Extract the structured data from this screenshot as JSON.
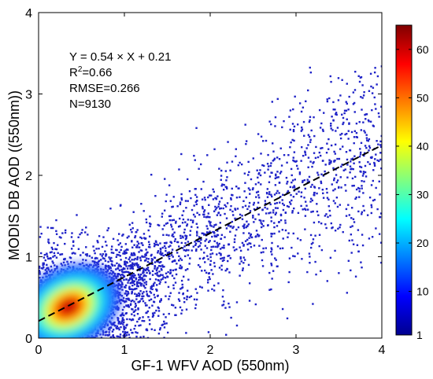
{
  "chart_data": {
    "type": "scatter",
    "subtype": "density-colored scatter with regression line",
    "xlabel": "GF-1 WFV AOD (550nm)",
    "ylabel": "MODIS DB AOD ((550nm))",
    "xlim": [
      0,
      4
    ],
    "ylim": [
      0,
      4
    ],
    "xticks": [
      "0",
      "1",
      "2",
      "3",
      "4"
    ],
    "yticks": [
      "0",
      "1",
      "2",
      "3",
      "4"
    ],
    "grid": false,
    "annotations": [
      "Y = 0.54 × X + 0.21",
      "R²=0.66",
      "RMSE=0.266",
      "N=9130"
    ],
    "annotation_lines": [
      {
        "text": "Y = 0.54 × X + 0.21"
      },
      {
        "base": "R",
        "sup": "2",
        "rest": "=0.66"
      },
      {
        "text": "RMSE=0.266"
      },
      {
        "text": "N=9130"
      }
    ],
    "regression": {
      "slope": 0.54,
      "intercept": 0.21,
      "x_range": [
        0,
        4
      ],
      "style": "dashed",
      "color": "#000000"
    },
    "statistics": {
      "R2": 0.66,
      "RMSE": 0.266,
      "N": 9130
    },
    "density_core": {
      "center": [
        0.35,
        0.38
      ],
      "spread": [
        0.28,
        0.2
      ],
      "peak_count": 65
    },
    "scatter_color": "#1f23c8",
    "colorbar": {
      "min": 1,
      "max": 65,
      "ticks": [
        "1",
        "10",
        "20",
        "30",
        "40",
        "50",
        "60"
      ],
      "tick_values": [
        1,
        10,
        20,
        30,
        40,
        50,
        60
      ],
      "colormap": "jet",
      "colors": [
        "#00008f",
        "#0000ff",
        "#0080ff",
        "#00ffff",
        "#80ff80",
        "#ffff00",
        "#ff8000",
        "#ff0000",
        "#800000"
      ]
    }
  }
}
